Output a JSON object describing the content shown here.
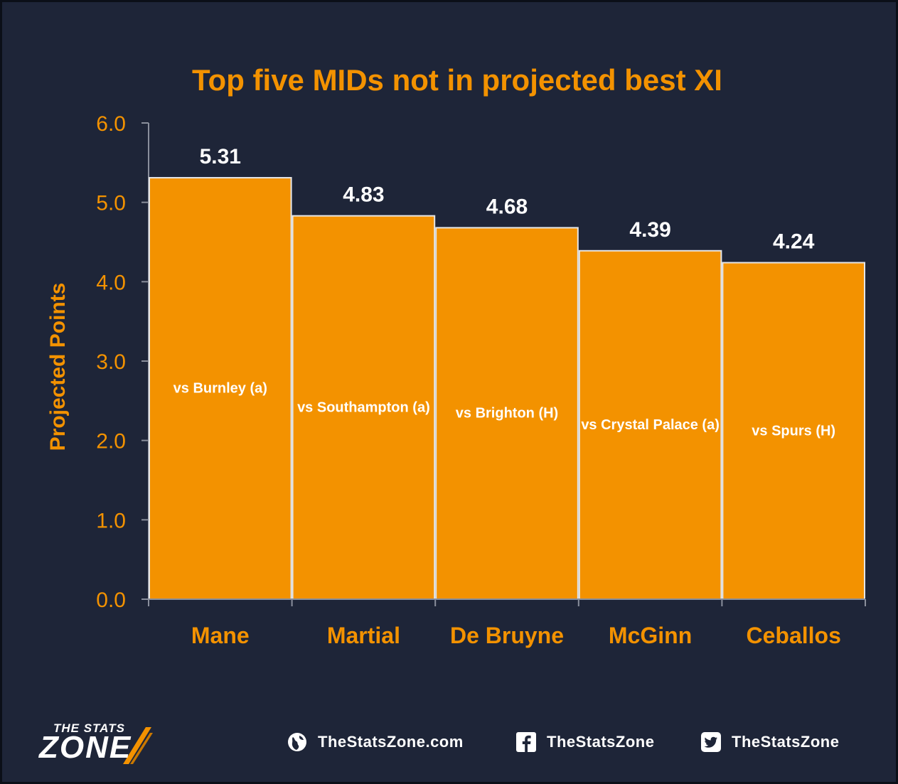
{
  "chart_data": {
    "type": "bar",
    "title": "Top five MIDs not in projected best XI",
    "ylabel": "Projected Points",
    "xlabel": "",
    "ylim": [
      0,
      6
    ],
    "yticks": [
      "0.0",
      "1.0",
      "2.0",
      "3.0",
      "4.0",
      "5.0",
      "6.0"
    ],
    "categories": [
      "Mane",
      "Martial",
      "De Bruyne",
      "McGinn",
      "Ceballos"
    ],
    "values": [
      5.31,
      4.83,
      4.68,
      4.39,
      4.24
    ],
    "value_labels": [
      "5.31",
      "4.83",
      "4.68",
      "4.39",
      "4.24"
    ],
    "fixtures": [
      "vs Burnley (a)",
      "vs Southampton (a)",
      "vs Brighton (H)",
      "vs Crystal Palace (a)",
      "vs Spurs (H)"
    ],
    "grid": false,
    "legend": "none",
    "colors": {
      "background": "#1e2538",
      "bar": "#f39200",
      "bar_edge": "#e6e6e6",
      "accent_text": "#f39200",
      "value_text": "#ffffff",
      "axis": "#8a8f9c"
    }
  },
  "footer": {
    "logo_top": "THE STATS",
    "logo_main": "ZONE",
    "website": "TheStatsZone.com",
    "facebook": "TheStatsZone",
    "twitter": "TheStatsZone",
    "website_icon": "globe-icon",
    "facebook_icon": "facebook-icon",
    "twitter_icon": "twitter-icon"
  }
}
